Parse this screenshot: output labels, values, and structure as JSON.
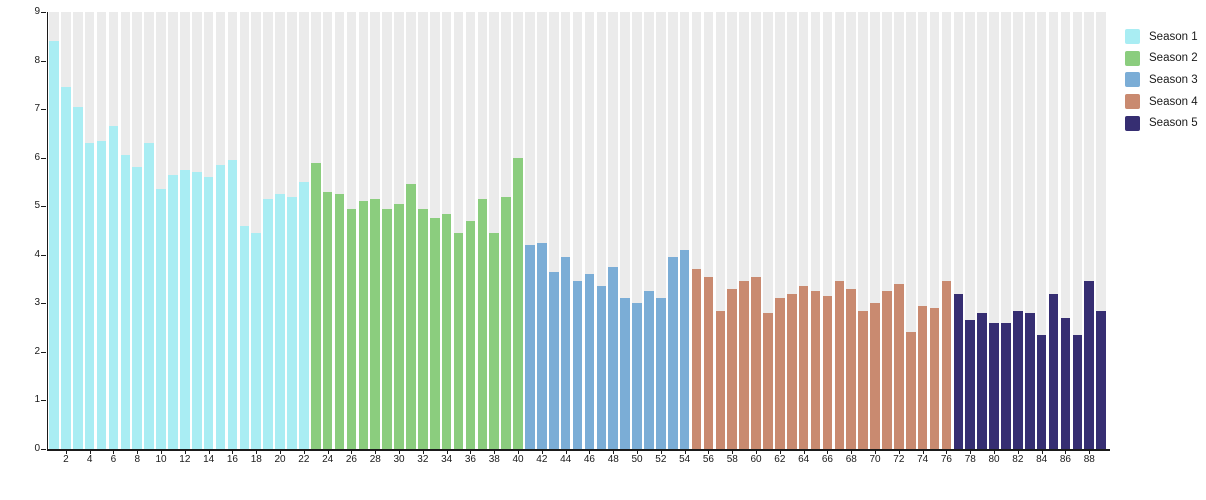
{
  "chart": {
    "y_tick_labels": [
      "0",
      "1",
      "2",
      "3",
      "4",
      "5",
      "6",
      "7",
      "8",
      "9"
    ],
    "x_tick_labels": [
      "2",
      "4",
      "6",
      "8",
      "10",
      "12",
      "14",
      "16",
      "18",
      "20",
      "22",
      "24",
      "26",
      "28",
      "30",
      "32",
      "34",
      "36",
      "38",
      "40",
      "42",
      "44",
      "46",
      "48",
      "50",
      "52",
      "54",
      "56",
      "58",
      "60",
      "62",
      "64",
      "66",
      "68",
      "70",
      "72",
      "74",
      "76",
      "78",
      "80",
      "82",
      "84",
      "86",
      "88"
    ]
  },
  "legend": {
    "items": [
      {
        "label": "Season 1",
        "color": "#a9edf3"
      },
      {
        "label": "Season 2",
        "color": "#8bcd7e"
      },
      {
        "label": "Season 3",
        "color": "#7badd6"
      },
      {
        "label": "Season 4",
        "color": "#c98a70"
      },
      {
        "label": "Season 5",
        "color": "#362e72"
      }
    ]
  },
  "chart_data": {
    "type": "bar",
    "title": "",
    "xlabel": "",
    "ylabel": "",
    "ylim": [
      0,
      9
    ],
    "x_range": [
      1,
      89
    ],
    "x_tick_step": 2,
    "grid": false,
    "background_columns": true,
    "legend_position": "top-right",
    "series": [
      {
        "name": "Season 1",
        "color": "#a9edf3",
        "start_episode": 1,
        "values": [
          8.4,
          7.45,
          7.05,
          6.3,
          6.35,
          6.65,
          6.05,
          5.8,
          6.3,
          5.35,
          5.65,
          5.75,
          5.7,
          5.6,
          5.85,
          5.95,
          4.6,
          4.45,
          5.15,
          5.25,
          5.2,
          5.5
        ]
      },
      {
        "name": "Season 2",
        "color": "#8bcd7e",
        "start_episode": 23,
        "values": [
          5.9,
          5.3,
          5.25,
          4.95,
          5.1,
          5.15,
          4.95,
          5.05,
          5.45,
          4.95,
          4.75,
          4.85,
          4.45,
          4.7,
          5.15,
          4.45,
          5.2,
          6.0
        ]
      },
      {
        "name": "Season 3",
        "color": "#7badd6",
        "start_episode": 41,
        "values": [
          4.2,
          4.25,
          3.65,
          3.95,
          3.45,
          3.6,
          3.35,
          3.75,
          3.1,
          3.0,
          3.25,
          3.1,
          3.95,
          4.1
        ]
      },
      {
        "name": "Season 4",
        "color": "#c98a70",
        "start_episode": 55,
        "values": [
          3.7,
          3.55,
          2.85,
          3.3,
          3.45,
          3.55,
          2.8,
          3.1,
          3.2,
          3.35,
          3.25,
          3.15,
          3.45,
          3.3,
          2.85,
          3.0,
          3.25,
          3.4,
          2.4,
          2.95,
          2.9,
          3.45
        ]
      },
      {
        "name": "Season 5",
        "color": "#362e72",
        "start_episode": 77,
        "values": [
          3.2,
          2.65,
          2.8,
          2.6,
          2.6,
          2.85,
          2.8,
          2.35,
          3.2,
          2.7,
          2.35,
          3.45,
          2.85
        ]
      }
    ]
  }
}
